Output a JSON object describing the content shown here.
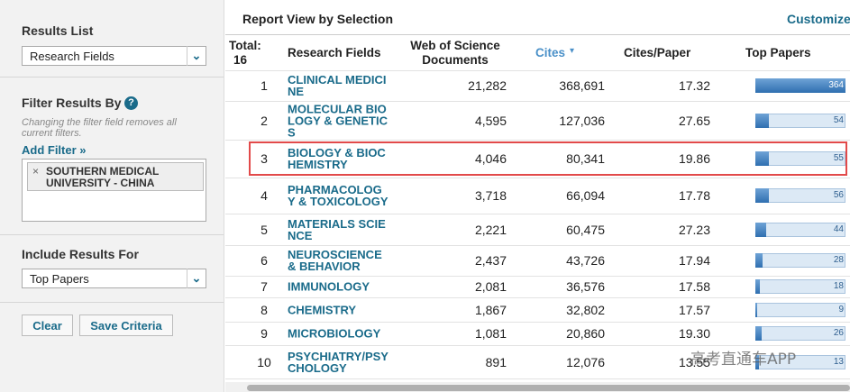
{
  "sidebar": {
    "results_list": {
      "label": "Results List",
      "selected": "Research Fields"
    },
    "filter": {
      "label": "Filter Results By",
      "note": "Changing the filter field removes all current filters.",
      "add_filter": "Add Filter »",
      "active_filters": [
        "SOUTHERN MEDICAL UNIVERSITY - CHINA"
      ]
    },
    "include": {
      "label": "Include Results For",
      "selected": "Top Papers"
    },
    "buttons": [
      "Clear",
      "Save Criteria"
    ]
  },
  "report": {
    "title": "Report View by Selection",
    "customize": "Customize",
    "total_label": "Total:",
    "total": 16,
    "columns": [
      "Research Fields",
      "Web of Science Documents",
      "Cites",
      "Cites/Paper",
      "Top Papers"
    ],
    "rows": [
      {
        "rank": 1,
        "field": "CLINICAL MEDICINE",
        "documents": "21,282",
        "cites": "368,691",
        "cites_per_paper": "17.32",
        "top_papers": 364
      },
      {
        "rank": 2,
        "field": "MOLECULAR BIOLOGY & GENETICS",
        "documents": "4,595",
        "cites": "127,036",
        "cites_per_paper": "27.65",
        "top_papers": 54
      },
      {
        "rank": 3,
        "field": "BIOLOGY & BIOCHEMISTRY",
        "documents": "4,046",
        "cites": "80,341",
        "cites_per_paper": "19.86",
        "top_papers": 55
      },
      {
        "rank": 4,
        "field": "PHARMACOLOGY & TOXICOLOGY",
        "documents": "3,718",
        "cites": "66,094",
        "cites_per_paper": "17.78",
        "top_papers": 56
      },
      {
        "rank": 5,
        "field": "MATERIALS SCIENCE",
        "documents": "2,221",
        "cites": "60,475",
        "cites_per_paper": "27.23",
        "top_papers": 44
      },
      {
        "rank": 6,
        "field": "NEUROSCIENCE & BEHAVIOR",
        "documents": "2,437",
        "cites": "43,726",
        "cites_per_paper": "17.94",
        "top_papers": 28
      },
      {
        "rank": 7,
        "field": "IMMUNOLOGY",
        "documents": "2,081",
        "cites": "36,576",
        "cites_per_paper": "17.58",
        "top_papers": 18
      },
      {
        "rank": 8,
        "field": "CHEMISTRY",
        "documents": "1,867",
        "cites": "32,802",
        "cites_per_paper": "17.57",
        "top_papers": 9
      },
      {
        "rank": 9,
        "field": "MICROBIOLOGY",
        "documents": "1,081",
        "cites": "20,860",
        "cites_per_paper": "19.30",
        "top_papers": 26
      },
      {
        "rank": 10,
        "field": "PSYCHIATRY/PSYCHOLOGY",
        "documents": "891",
        "cites": "12,076",
        "cites_per_paper": "13.55",
        "top_papers": 13
      }
    ]
  },
  "watermark": "高考直通车APP"
}
